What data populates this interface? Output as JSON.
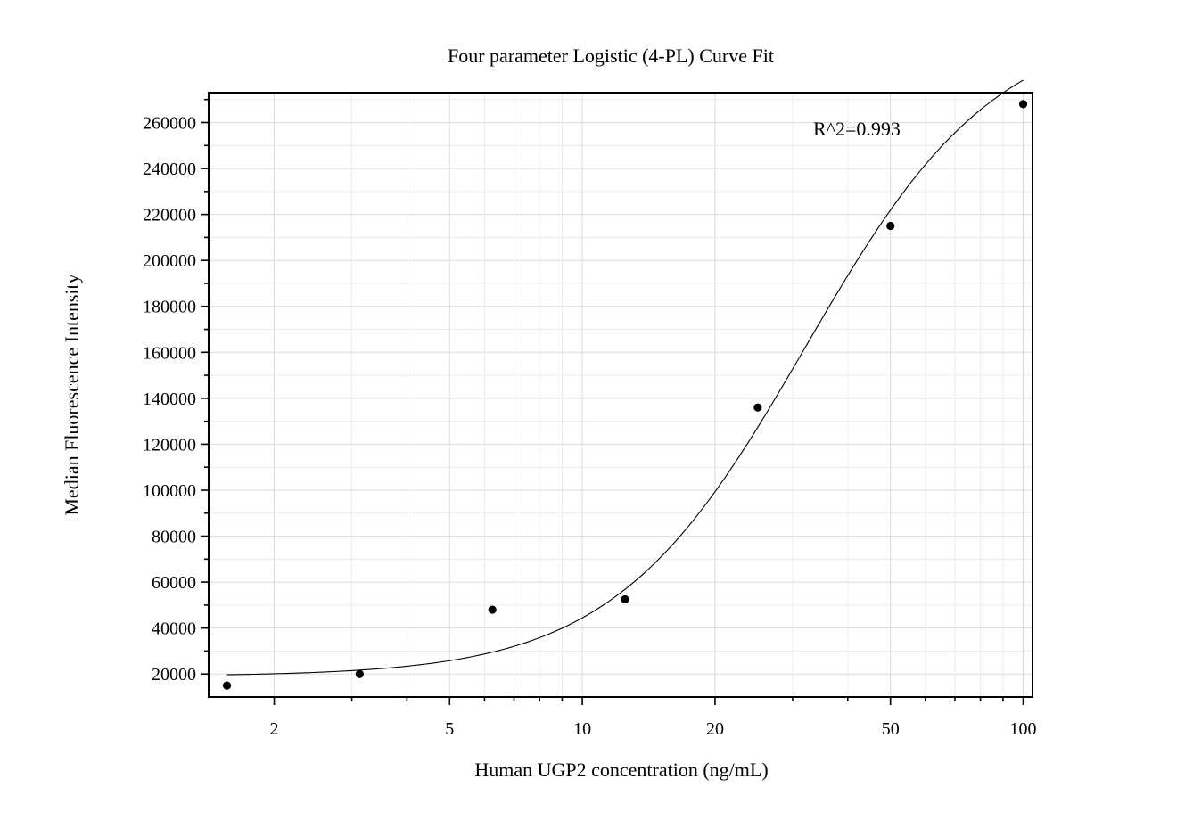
{
  "chart_data": {
    "type": "scatter",
    "title": "Four parameter Logistic (4-PL) Curve Fit",
    "xlabel": "Human UGP2 concentration (ng/mL)",
    "ylabel": "Median Fluorescence Intensity",
    "x_scale": "log",
    "xlim": [
      1.42,
      105
    ],
    "ylim": [
      10000,
      273000
    ],
    "x_ticks": [
      2,
      5,
      10,
      20,
      50,
      100
    ],
    "x_tick_labels": [
      "2",
      "5",
      "10",
      "20",
      "50",
      "100"
    ],
    "y_ticks": [
      20000,
      40000,
      60000,
      80000,
      100000,
      120000,
      140000,
      160000,
      180000,
      200000,
      220000,
      240000,
      260000
    ],
    "y_tick_labels": [
      "20000",
      "40000",
      "60000",
      "80000",
      "100000",
      "120000",
      "140000",
      "160000",
      "180000",
      "200000",
      "220000",
      "240000",
      "260000"
    ],
    "grid": true,
    "points": {
      "x": [
        1.5625,
        3.125,
        6.25,
        12.5,
        25,
        50,
        100
      ],
      "y": [
        15000,
        20000,
        48000,
        52500,
        136000,
        215000,
        268000
      ]
    },
    "fit_curve": {
      "model": "4PL",
      "bottom": 19000,
      "top": 305000,
      "ec50": 32,
      "hill": 2.0,
      "x_range": [
        1.5625,
        100
      ]
    },
    "annotation": "R^2=0.993"
  }
}
